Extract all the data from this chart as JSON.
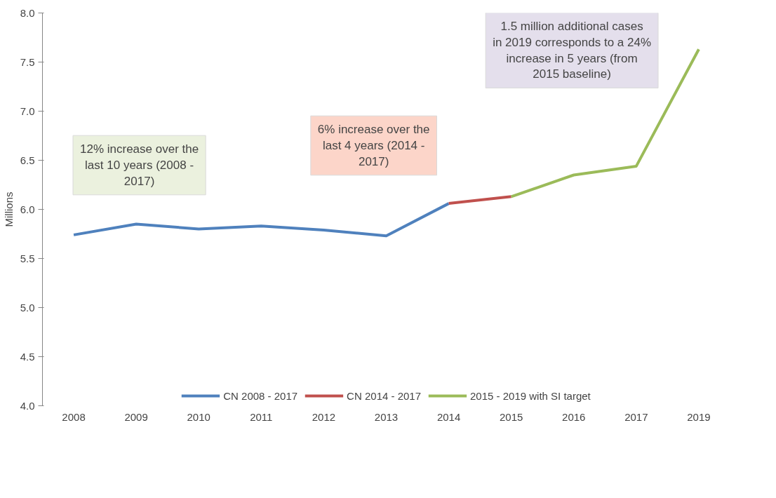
{
  "chart_data": {
    "type": "line",
    "ylabel": "Millions",
    "categories": [
      "2008",
      "2009",
      "2010",
      "2011",
      "2012",
      "2013",
      "2014",
      "2015",
      "2016",
      "2017",
      "2019"
    ],
    "series": [
      {
        "name": "CN 2008 - 2017",
        "color": "#4f81bd",
        "values": [
          5.74,
          5.85,
          5.8,
          5.83,
          5.79,
          5.73,
          6.06,
          null,
          null,
          null,
          null
        ]
      },
      {
        "name": "CN 2014 - 2017",
        "color": "#c0504d",
        "values": [
          null,
          null,
          null,
          null,
          null,
          null,
          6.06,
          6.13,
          null,
          null,
          null
        ]
      },
      {
        "name": "2015 - 2019 with SI target",
        "color": "#9bbb59",
        "values": [
          null,
          null,
          null,
          null,
          null,
          null,
          null,
          6.13,
          6.35,
          6.44,
          7.63
        ]
      }
    ],
    "ylim": [
      4.0,
      8.0
    ],
    "yticks": [
      {
        "value": 4.0,
        "label": "4.0"
      },
      {
        "value": 4.5,
        "label": "4.5"
      },
      {
        "value": 5.0,
        "label": "5.0"
      },
      {
        "value": 5.5,
        "label": "5.5"
      },
      {
        "value": 6.0,
        "label": "6.0"
      },
      {
        "value": 6.5,
        "label": "6.5"
      },
      {
        "value": 7.0,
        "label": "7.0"
      },
      {
        "value": 7.5,
        "label": "7.5"
      },
      {
        "value": 8.0,
        "label": "8.0"
      }
    ],
    "annotations": [
      "12% increase over the last 10 years (2008 - 2017)",
      "6% increase over the last 4 years (2014 - 2017)",
      "1.5 million additional cases in 2019 corresponds to a 24% increase in 5 years (from 2015 baseline)"
    ],
    "grid": false,
    "legend": "bottom",
    "marker": "none",
    "line_style": "solid"
  }
}
